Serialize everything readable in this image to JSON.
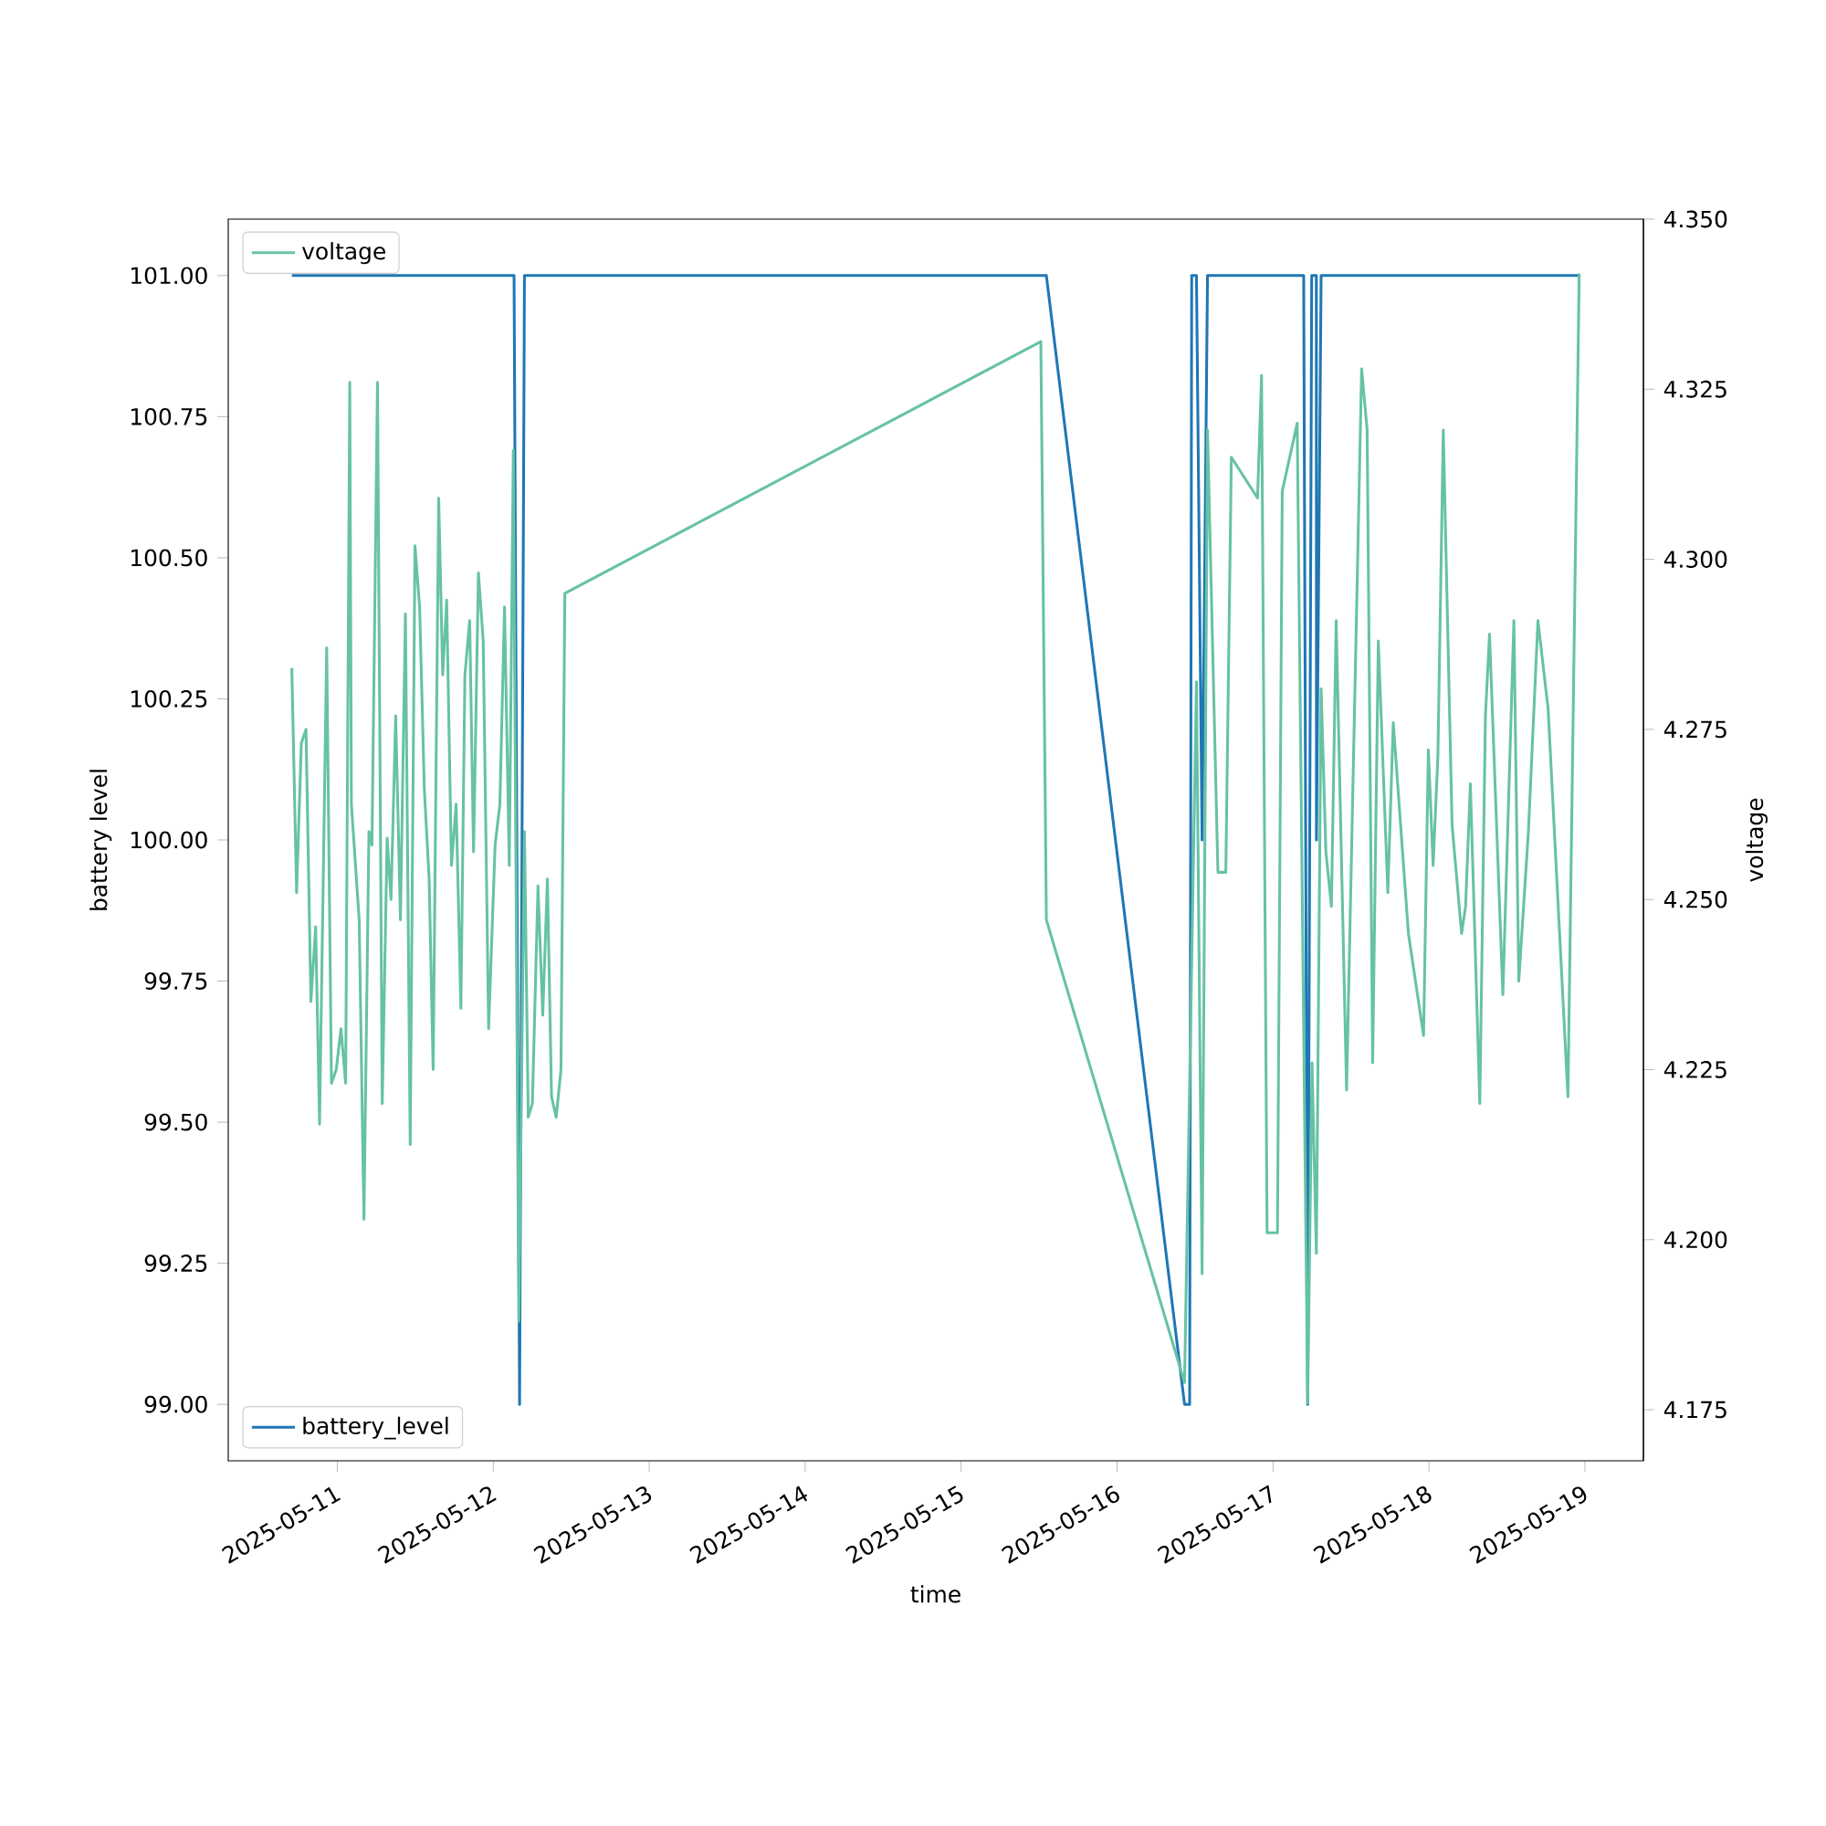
{
  "chart_data": {
    "type": "line",
    "legend": "left",
    "xlabel": "time",
    "ylabel": "battery level",
    "y2label": "voltage",
    "xlim": [
      "2025-05-10T07:13",
      "2025-05-19T09:00"
    ],
    "xticks": [
      "2025-05-11",
      "2025-05-12",
      "2025-05-13",
      "2025-05-14",
      "2025-05-15",
      "2025-05-16",
      "2025-05-17",
      "2025-05-18",
      "2025-05-19"
    ],
    "ylim": [
      98.9,
      101.1
    ],
    "yticks": [
      {
        "value": 99,
        "label": "99.00"
      },
      {
        "value": 99.25,
        "label": "99.25"
      },
      {
        "value": 99.5,
        "label": "99.50"
      },
      {
        "value": 99.75,
        "label": "99.75"
      },
      {
        "value": 100,
        "label": "100.00"
      },
      {
        "value": 100.25,
        "label": "100.25"
      },
      {
        "value": 100.5,
        "label": "100.50"
      },
      {
        "value": 100.75,
        "label": "100.75"
      },
      {
        "value": 101,
        "label": "101.00"
      }
    ],
    "y2lim": [
      4.1675,
      4.35
    ],
    "y2ticks": [
      {
        "value": 4.175,
        "label": "4.175"
      },
      {
        "value": 4.2,
        "label": "4.200"
      },
      {
        "value": 4.225,
        "label": "4.225"
      },
      {
        "value": 4.25,
        "label": "4.250"
      },
      {
        "value": 4.275,
        "label": "4.275"
      },
      {
        "value": 4.3,
        "label": "4.300"
      },
      {
        "value": 4.325,
        "label": "4.325"
      },
      {
        "value": 4.35,
        "label": "4.350"
      }
    ],
    "series": [
      {
        "name": "battery_level",
        "color": "#1f77b4",
        "x": [
          "2025-05-10T17:00",
          "2025-05-12T03:12",
          "2025-05-12T04:03",
          "2025-05-12T04:48",
          "2025-05-15T13:07",
          "2025-05-16T10:23",
          "2025-05-16T11:10",
          "2025-05-16T11:29",
          "2025-05-16T12:13",
          "2025-05-16T13:05",
          "2025-05-16T13:55",
          "2025-05-17T04:43",
          "2025-05-17T05:20",
          "2025-05-17T05:57",
          "2025-05-17T06:40",
          "2025-05-17T06:41",
          "2025-05-17T07:24",
          "2025-05-18T23:07"
        ],
        "values": [
          101,
          101,
          99,
          101,
          101,
          99,
          99,
          101,
          101,
          100,
          101,
          101,
          99,
          101,
          101,
          100,
          101,
          101
        ]
      },
      {
        "name": "voltage",
        "color": "#66c2a5",
        "axis": "y2",
        "x": [
          "2025-05-10T17:00",
          "2025-05-10T17:44",
          "2025-05-10T18:28",
          "2025-05-10T19:11",
          "2025-05-10T19:56",
          "2025-05-10T20:40",
          "2025-05-10T21:16",
          "2025-05-10T22:22",
          "2025-05-10T23:06",
          "2025-05-10T23:50",
          "2025-05-11T00:34",
          "2025-05-11T01:17",
          "2025-05-11T01:55",
          "2025-05-11T02:10",
          "2025-05-11T03:22",
          "2025-05-11T04:06",
          "2025-05-11T04:52",
          "2025-05-11T05:20",
          "2025-05-11T06:11",
          "2025-05-11T06:55",
          "2025-05-11T07:40",
          "2025-05-11T08:16",
          "2025-05-11T08:59",
          "2025-05-11T09:43",
          "2025-05-11T10:29",
          "2025-05-11T11:13",
          "2025-05-11T11:57",
          "2025-05-11T12:40",
          "2025-05-11T13:24",
          "2025-05-11T14:08",
          "2025-05-11T14:45",
          "2025-05-11T15:36",
          "2025-05-11T16:13",
          "2025-05-11T16:50",
          "2025-05-11T17:34",
          "2025-05-11T18:17",
          "2025-05-11T19:01",
          "2025-05-11T19:38",
          "2025-05-11T20:22",
          "2025-05-11T20:58",
          "2025-05-11T21:43",
          "2025-05-11T22:27",
          "2025-05-11T23:17",
          "2025-05-12T00:17",
          "2025-05-12T01:01",
          "2025-05-12T01:44",
          "2025-05-12T02:28",
          "2025-05-12T03:05",
          "2025-05-12T03:56",
          "2025-05-12T04:48",
          "2025-05-12T05:23",
          "2025-05-12T06:01",
          "2025-05-12T06:53",
          "2025-05-12T07:37",
          "2025-05-12T08:20",
          "2025-05-12T08:58",
          "2025-05-12T09:41",
          "2025-05-12T10:25",
          "2025-05-12T11:01",
          "2025-05-15T12:16",
          "2025-05-15T13:07",
          "2025-05-16T10:23",
          "2025-05-16T12:13",
          "2025-05-16T13:05",
          "2025-05-16T13:55",
          "2025-05-16T15:31",
          "2025-05-16T16:44",
          "2025-05-16T17:35",
          "2025-05-16T21:37",
          "2025-05-16T22:14",
          "2025-05-16T23:05",
          "2025-05-17T00:41",
          "2025-05-17T01:25",
          "2025-05-17T03:43",
          "2025-05-17T05:20",
          "2025-05-17T06:00",
          "2025-05-17T06:40",
          "2025-05-17T07:24",
          "2025-05-17T08:08",
          "2025-05-17T08:59",
          "2025-05-17T09:43",
          "2025-05-17T11:19",
          "2025-05-17T13:38",
          "2025-05-17T14:29",
          "2025-05-17T15:20",
          "2025-05-17T16:12",
          "2025-05-17T17:40",
          "2025-05-17T18:30",
          "2025-05-17T20:50",
          "2025-05-17T23:10",
          "2025-05-17T23:54",
          "2025-05-18T00:38",
          "2025-05-18T01:22",
          "2025-05-18T02:12",
          "2025-05-18T03:33",
          "2025-05-18T05:01",
          "2025-05-18T05:38",
          "2025-05-18T06:22",
          "2025-05-18T07:49",
          "2025-05-18T08:41",
          "2025-05-18T09:19",
          "2025-05-18T11:22",
          "2025-05-18T13:04",
          "2025-05-18T13:49",
          "2025-05-18T15:18",
          "2025-05-18T16:46",
          "2025-05-18T18:20",
          "2025-05-18T21:23",
          "2025-05-18T23:07"
        ],
        "values": [
          4.284,
          4.251,
          4.273,
          4.275,
          4.235,
          4.246,
          4.217,
          4.287,
          4.223,
          4.225,
          4.231,
          4.223,
          4.326,
          4.264,
          4.247,
          4.203,
          4.26,
          4.258,
          4.326,
          4.22,
          4.259,
          4.25,
          4.277,
          4.247,
          4.292,
          4.214,
          4.302,
          4.293,
          4.266,
          4.253,
          4.225,
          4.309,
          4.283,
          4.294,
          4.255,
          4.264,
          4.234,
          4.283,
          4.291,
          4.257,
          4.298,
          4.288,
          4.231,
          4.258,
          4.264,
          4.293,
          4.255,
          4.316,
          4.188,
          4.26,
          4.218,
          4.22,
          4.252,
          4.233,
          4.253,
          4.221,
          4.218,
          4.225,
          4.295,
          4.332,
          4.247,
          4.179,
          4.282,
          4.195,
          4.319,
          4.254,
          4.254,
          4.315,
          4.309,
          4.327,
          4.201,
          4.201,
          4.31,
          4.32,
          4.176,
          4.226,
          4.198,
          4.281,
          4.257,
          4.249,
          4.291,
          4.222,
          4.328,
          4.319,
          4.226,
          4.288,
          4.251,
          4.276,
          4.245,
          4.23,
          4.272,
          4.255,
          4.271,
          4.319,
          4.261,
          4.245,
          4.249,
          4.267,
          4.22,
          4.277,
          4.289,
          4.236,
          4.291,
          4.238,
          4.26,
          4.291,
          4.278,
          4.221,
          4.342
        ]
      }
    ]
  }
}
